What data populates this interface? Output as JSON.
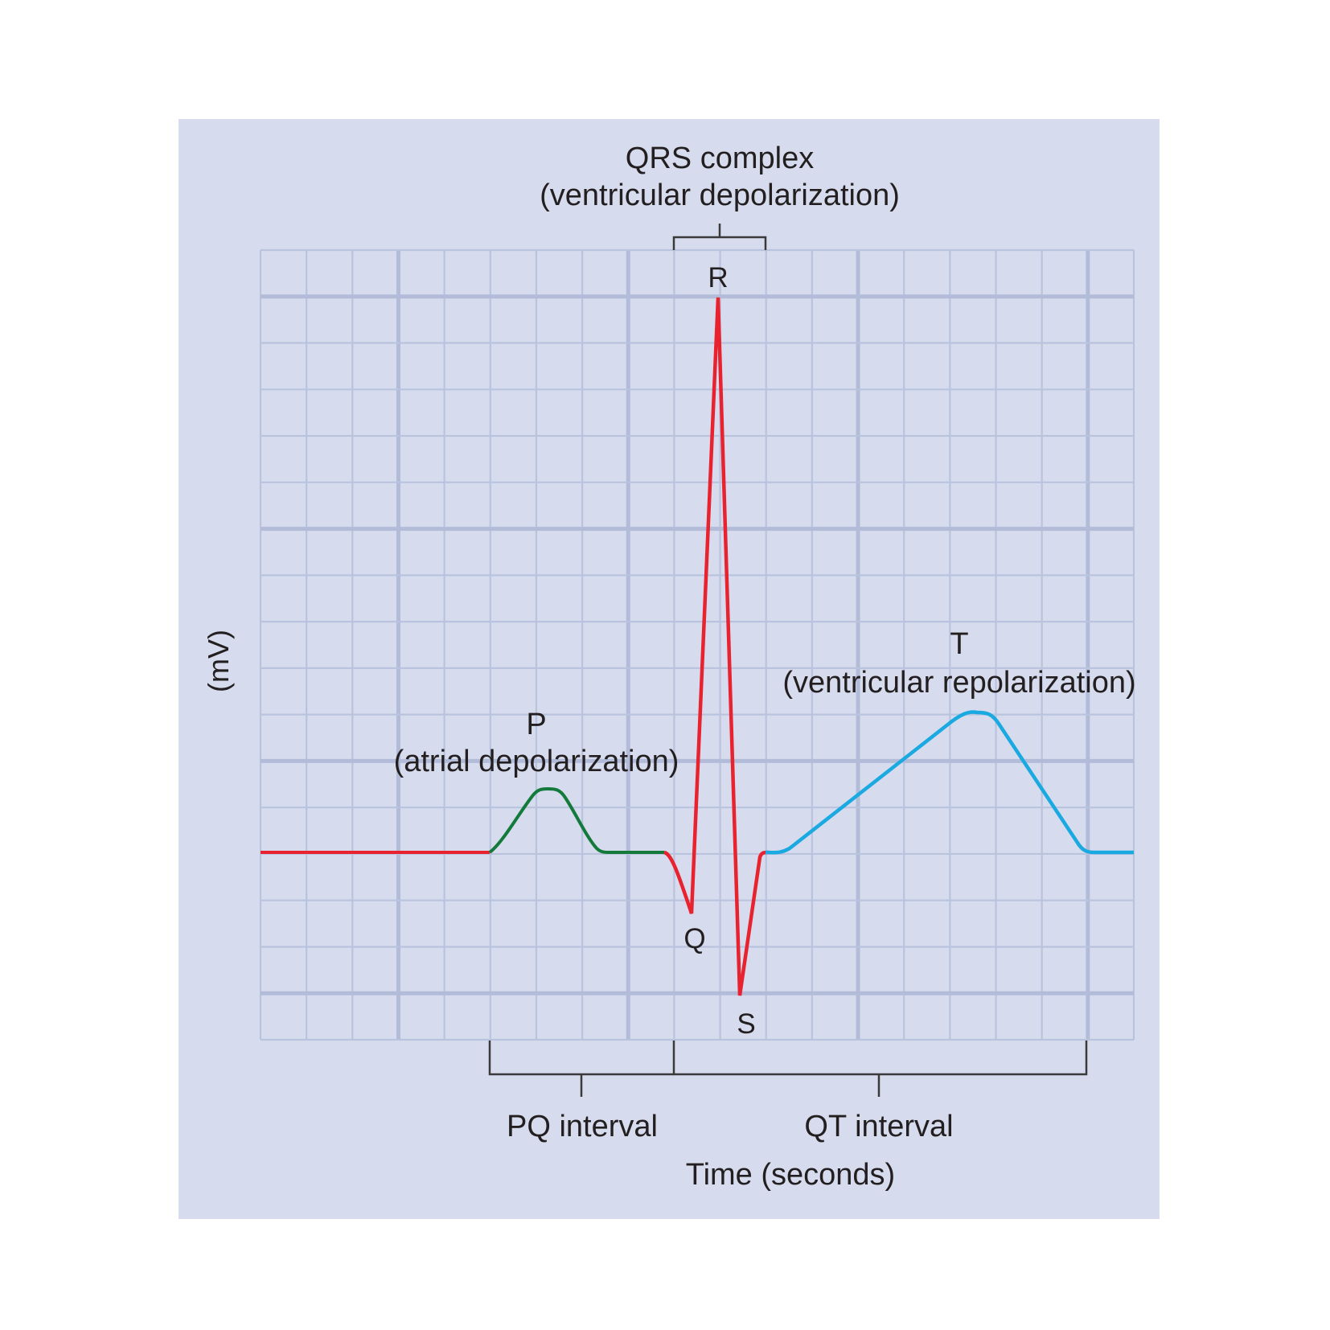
{
  "colors": {
    "panel_background": "#d6dced",
    "grid_minor": "#b9c3de",
    "grid_major": "#b2bcd9",
    "baseline_and_qrs": "#e8222f",
    "p_wave": "#137a3c",
    "t_wave": "#1aa9e0",
    "brackets": "#3a3a3a",
    "text": "#231f20"
  },
  "labels": {
    "qrs_title": "QRS complex",
    "qrs_subtitle": "(ventricular depolarization)",
    "r": "R",
    "q": "Q",
    "s": "S",
    "p_title": "P",
    "p_subtitle": "(atrial depolarization)",
    "t_title": "T",
    "t_subtitle": "(ventricular repolarization)",
    "pq_interval": "PQ interval",
    "qt_interval": "QT interval",
    "x_axis": "Time (seconds)",
    "y_axis": "(mV)"
  },
  "waves": [
    "P",
    "Q",
    "R",
    "S",
    "T"
  ]
}
